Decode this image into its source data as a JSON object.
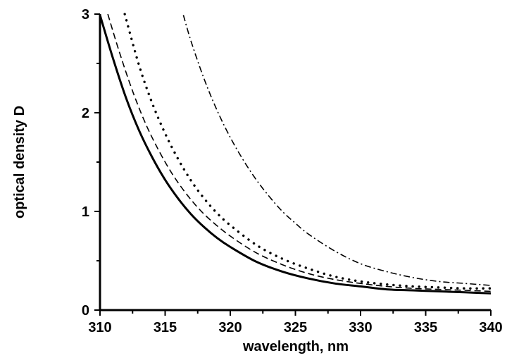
{
  "chart_data": {
    "type": "line",
    "title": "",
    "xlabel": "wavelength, nm",
    "ylabel": "optical density D",
    "xlim": [
      310,
      340
    ],
    "ylim": [
      0,
      3
    ],
    "x_ticks": [
      310,
      315,
      320,
      325,
      330,
      335,
      340
    ],
    "y_ticks": [
      0,
      1,
      2,
      3
    ],
    "grid": false,
    "legend": "none",
    "series": [
      {
        "style": "solid",
        "color": "#000000",
        "x": [
          310.0,
          311.0,
          312.0,
          313.0,
          314.0,
          315.0,
          316.0,
          317.0,
          318.0,
          319.0,
          320.0,
          322.0,
          324.0,
          326.0,
          328.0,
          330.0,
          332.0,
          334.0,
          336.0,
          338.0,
          340.0
        ],
        "y": [
          2.99,
          2.55,
          2.15,
          1.82,
          1.55,
          1.32,
          1.13,
          0.97,
          0.84,
          0.73,
          0.64,
          0.49,
          0.39,
          0.32,
          0.27,
          0.24,
          0.21,
          0.2,
          0.19,
          0.18,
          0.17
        ]
      },
      {
        "style": "dashed",
        "color": "#000000",
        "x": [
          310.6,
          311.5,
          312.5,
          313.5,
          314.5,
          315.5,
          316.5,
          317.5,
          318.5,
          320.0,
          322.0,
          324.0,
          326.0,
          328.0,
          330.0,
          332.0,
          334.0,
          336.0,
          338.0,
          340.0
        ],
        "y": [
          3.0,
          2.61,
          2.22,
          1.89,
          1.62,
          1.39,
          1.2,
          1.04,
          0.91,
          0.75,
          0.58,
          0.46,
          0.37,
          0.31,
          0.27,
          0.24,
          0.22,
          0.21,
          0.2,
          0.19
        ]
      },
      {
        "style": "dotted",
        "color": "#000000",
        "x": [
          311.9,
          313.0,
          314.0,
          315.0,
          316.0,
          317.0,
          318.0,
          319.0,
          320.0,
          322.0,
          324.0,
          326.0,
          328.0,
          330.0,
          332.0,
          334.0,
          336.0,
          338.0,
          340.0
        ],
        "y": [
          3.0,
          2.48,
          2.1,
          1.79,
          1.53,
          1.31,
          1.13,
          0.98,
          0.86,
          0.66,
          0.52,
          0.42,
          0.34,
          0.29,
          0.26,
          0.24,
          0.23,
          0.22,
          0.22
        ]
      },
      {
        "style": "dash-dot",
        "color": "#000000",
        "x": [
          316.4,
          317.0,
          318.0,
          319.0,
          320.0,
          321.0,
          322.0,
          323.0,
          324.0,
          325.0,
          326.0,
          328.0,
          330.0,
          332.0,
          334.0,
          336.0,
          338.0,
          340.0
        ],
        "y": [
          2.99,
          2.72,
          2.34,
          2.02,
          1.75,
          1.52,
          1.32,
          1.15,
          1.0,
          0.88,
          0.77,
          0.6,
          0.47,
          0.39,
          0.33,
          0.29,
          0.27,
          0.25
        ]
      }
    ]
  }
}
